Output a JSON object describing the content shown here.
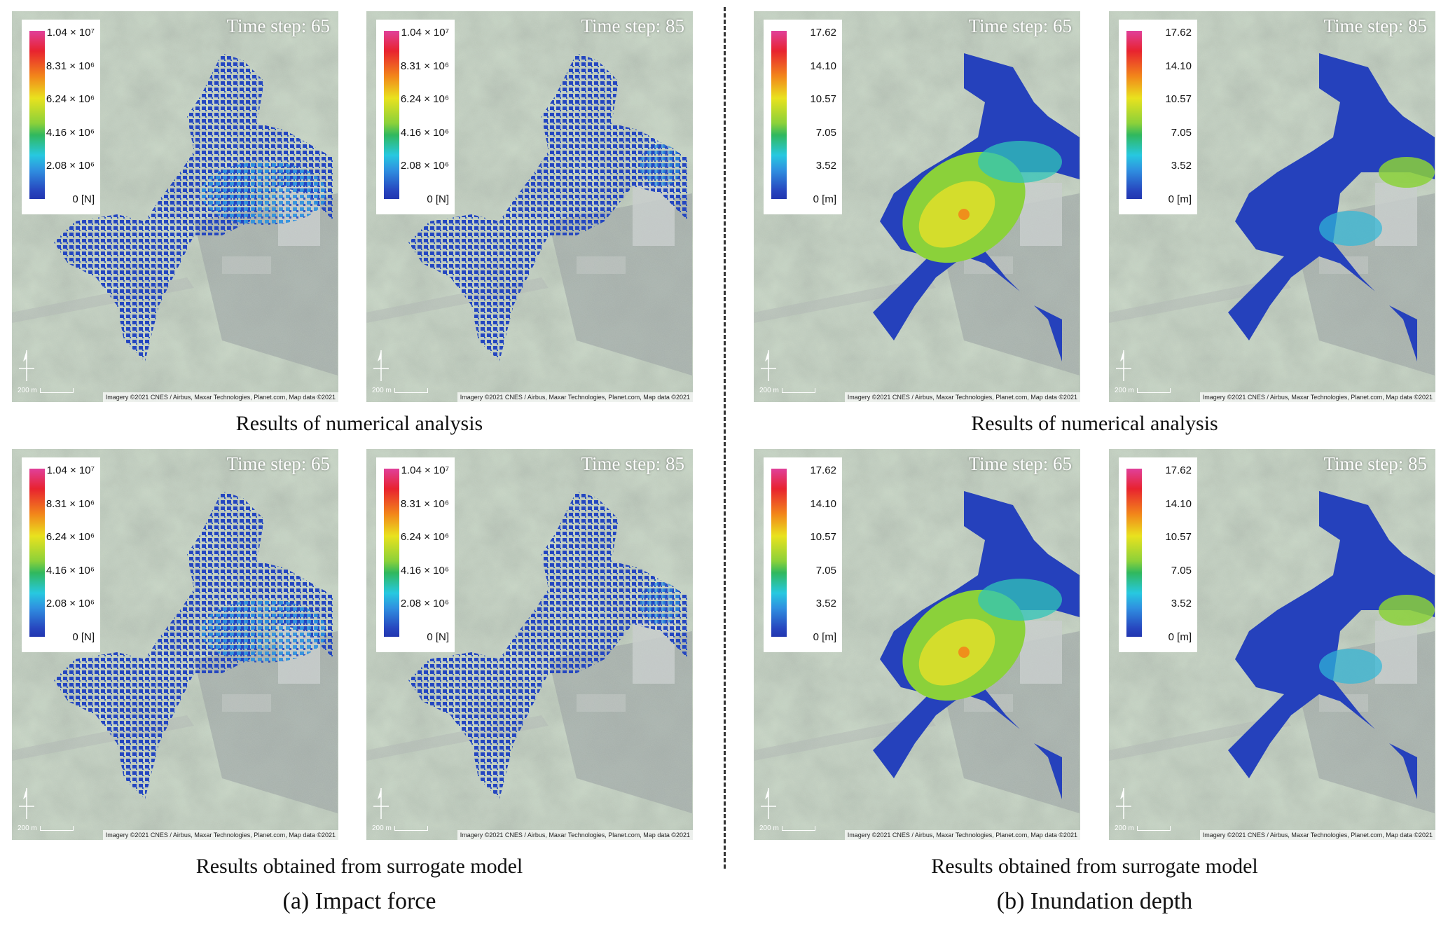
{
  "figure": {
    "row_captions": {
      "numerical": "Results of numerical analysis",
      "surrogate": "Results obtained from surrogate model"
    },
    "part_a_label": "(a) Impact force",
    "part_b_label": "(b) Inundation depth"
  },
  "legends": {
    "impact_force": {
      "ticks": [
        "1.04 × 10⁷",
        "8.31 × 10⁶",
        "6.24 × 10⁶",
        "4.16 × 10⁶",
        "2.08 × 10⁶",
        "0  [N]"
      ],
      "values": [
        10400000,
        8310000,
        6240000,
        4160000,
        2080000,
        0
      ],
      "unit": "N"
    },
    "inundation_depth": {
      "ticks": [
        "17.62",
        "14.10",
        "10.57",
        "7.05",
        "3.52",
        "0  [m]"
      ],
      "values": [
        17.62,
        14.1,
        10.57,
        7.05,
        3.52,
        0
      ],
      "unit": "m"
    }
  },
  "colormap": [
    "#e0409a",
    "#e8232f",
    "#f2861a",
    "#e9e21e",
    "#8bd13a",
    "#30b85e",
    "#27c8e0",
    "#2f8fe0",
    "#2746bf",
    "#2236b0"
  ],
  "map_common": {
    "scale_label": "200 m",
    "credit": "Imagery ©2021 CNES / Airbus, Maxar Technologies, Planet.com, Map data ©2021"
  },
  "panels": [
    {
      "id": "a-num-65",
      "quantity": "impact_force",
      "source": "numerical",
      "time_step_label": "Time step: 65",
      "time_step": 65
    },
    {
      "id": "a-num-85",
      "quantity": "impact_force",
      "source": "numerical",
      "time_step_label": "Time step: 85",
      "time_step": 85
    },
    {
      "id": "b-num-65",
      "quantity": "inundation_depth",
      "source": "numerical",
      "time_step_label": "Time step: 65",
      "time_step": 65
    },
    {
      "id": "b-num-85",
      "quantity": "inundation_depth",
      "source": "numerical",
      "time_step_label": "Time step: 85",
      "time_step": 85
    },
    {
      "id": "a-sur-65",
      "quantity": "impact_force",
      "source": "surrogate",
      "time_step_label": "Time step: 65",
      "time_step": 65
    },
    {
      "id": "a-sur-85",
      "quantity": "impact_force",
      "source": "surrogate",
      "time_step_label": "Time step: 85",
      "time_step": 85
    },
    {
      "id": "b-sur-65",
      "quantity": "inundation_depth",
      "source": "surrogate",
      "time_step_label": "Time step: 65",
      "time_step": 65
    },
    {
      "id": "b-sur-85",
      "quantity": "inundation_depth",
      "source": "surrogate",
      "time_step_label": "Time step: 85",
      "time_step": 85
    }
  ]
}
